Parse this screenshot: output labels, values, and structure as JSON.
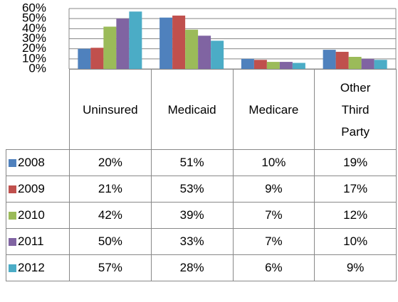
{
  "chart_data": {
    "type": "bar",
    "categories": [
      "Uninsured",
      "Medicaid",
      "Medicare",
      "Other Third Party"
    ],
    "series": [
      {
        "name": "2008",
        "color": "#4f81bd",
        "values": [
          20,
          51,
          10,
          19
        ],
        "value_labels": [
          "20%",
          "51%",
          "10%",
          "19%"
        ]
      },
      {
        "name": "2009",
        "color": "#c0504d",
        "values": [
          21,
          53,
          9,
          17
        ],
        "value_labels": [
          "21%",
          "53%",
          "9%",
          "17%"
        ]
      },
      {
        "name": "2010",
        "color": "#9bbb59",
        "values": [
          42,
          39,
          7,
          12
        ],
        "value_labels": [
          "42%",
          "39%",
          "7%",
          "12%"
        ]
      },
      {
        "name": "2011",
        "color": "#8064a2",
        "values": [
          50,
          33,
          7,
          10
        ],
        "value_labels": [
          "50%",
          "33%",
          "7%",
          "10%"
        ]
      },
      {
        "name": "2012",
        "color": "#4bacc6",
        "values": [
          57,
          28,
          6,
          9
        ],
        "value_labels": [
          "57%",
          "28%",
          "6%",
          "9%"
        ]
      }
    ],
    "ylim": [
      0,
      60
    ],
    "yticks": [
      {
        "value": 0,
        "label": "0%"
      },
      {
        "value": 10,
        "label": "10%"
      },
      {
        "value": 20,
        "label": "20%"
      },
      {
        "value": 30,
        "label": "30%"
      },
      {
        "value": 40,
        "label": "40%"
      },
      {
        "value": 50,
        "label": "50%"
      },
      {
        "value": 60,
        "label": "60%"
      }
    ],
    "grid": true
  }
}
